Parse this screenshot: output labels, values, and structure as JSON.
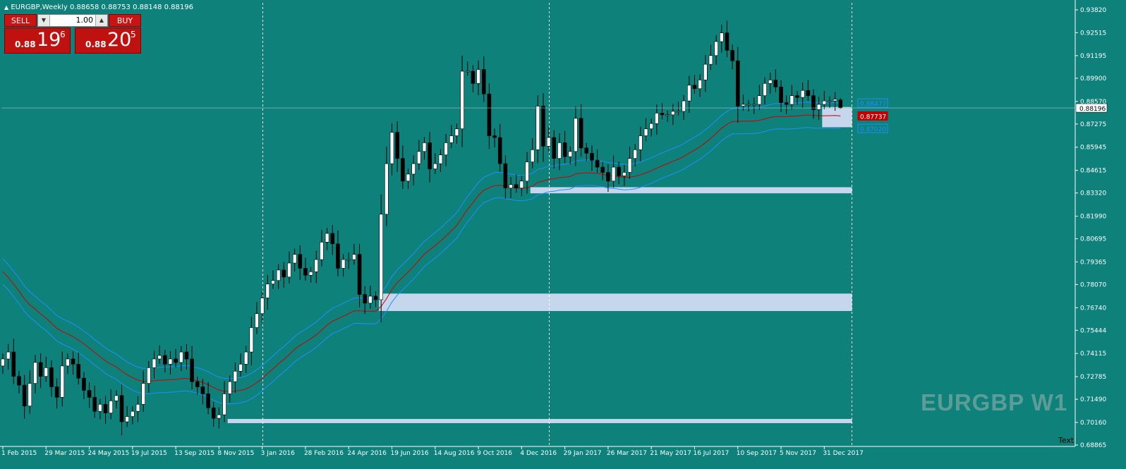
{
  "header": {
    "title": "EURGBP,Weekly  0.88658 0.88753 0.88148 0.88196"
  },
  "trade_panel": {
    "sell_label": "SELL",
    "buy_label": "BUY",
    "lot_value": "1.00",
    "sell_price_prefix": "0.88",
    "sell_price_big": "19",
    "sell_price_sup": "6",
    "buy_price_prefix": "0.88",
    "buy_price_big": "20",
    "buy_price_sup": "5"
  },
  "watermark": "EURGBP W1",
  "text_label": "Text",
  "price_axis": [
    "0.93820",
    "0.92515",
    "0.91195",
    "0.89900",
    "0.88570",
    "0.87275",
    "0.85945",
    "0.84615",
    "0.83320",
    "0.81990",
    "0.80695",
    "0.79365",
    "0.78070",
    "0.76740",
    "0.75444",
    "0.74115",
    "0.72785",
    "0.71490",
    "0.70160",
    "0.68865"
  ],
  "time_axis": [
    "1 Feb 2015",
    "29 Mar 2015",
    "24 May 2015",
    "19 Jul 2015",
    "13 Sep 2015",
    "8 Nov 2015",
    "3 Jan 2016",
    "28 Feb 2016",
    "24 Apr 2016",
    "19 Jun 2016",
    "14 Aug 2016",
    "9 Oct 2016",
    "4 Dec 2016",
    "29 Jan 2017",
    "26 Mar 2017",
    "21 May 2017",
    "16 Jul 2017",
    "10 Sep 2017",
    "5 Nov 2017",
    "31 Dec 2017"
  ],
  "price_tags": {
    "current": "0.88196",
    "upper_band": "0.88477",
    "middle_band": "0.87737",
    "lower_band": "0.87020"
  },
  "colors": {
    "background": "#0e817b",
    "bull": "#ffffff",
    "bear": "#000000",
    "band": "#1e90ff",
    "middle": "#cc0000",
    "zone": "#c6d6ec"
  },
  "chart_data": {
    "type": "candlestick",
    "symbol": "EURGBP",
    "timeframe": "Weekly",
    "current": {
      "open": 0.88658,
      "high": 0.88753,
      "low": 0.88148,
      "close": 0.88196
    },
    "ylim": [
      0.68865,
      0.9382
    ],
    "y_ticks": [
      0.9382,
      0.92515,
      0.91195,
      0.899,
      0.8857,
      0.87275,
      0.85945,
      0.84615,
      0.8332,
      0.8199,
      0.80695,
      0.79365,
      0.7807,
      0.7674,
      0.75444,
      0.74115,
      0.72785,
      0.7149,
      0.7016,
      0.68865
    ],
    "closes": [
      0.738,
      0.742,
      0.728,
      0.723,
      0.711,
      0.724,
      0.736,
      0.728,
      0.733,
      0.722,
      0.716,
      0.734,
      0.738,
      0.735,
      0.727,
      0.72,
      0.716,
      0.708,
      0.712,
      0.707,
      0.714,
      0.717,
      0.702,
      0.705,
      0.708,
      0.712,
      0.724,
      0.733,
      0.738,
      0.74,
      0.735,
      0.738,
      0.736,
      0.742,
      0.738,
      0.725,
      0.722,
      0.718,
      0.71,
      0.704,
      0.706,
      0.718,
      0.725,
      0.731,
      0.735,
      0.742,
      0.756,
      0.764,
      0.773,
      0.781,
      0.783,
      0.789,
      0.785,
      0.793,
      0.798,
      0.79,
      0.786,
      0.788,
      0.795,
      0.805,
      0.81,
      0.804,
      0.79,
      0.795,
      0.795,
      0.798,
      0.775,
      0.77,
      0.774,
      0.772,
      0.821,
      0.85,
      0.868,
      0.853,
      0.84,
      0.844,
      0.85,
      0.857,
      0.862,
      0.847,
      0.85,
      0.855,
      0.862,
      0.866,
      0.87,
      0.903,
      0.903,
      0.896,
      0.904,
      0.89,
      0.866,
      0.865,
      0.85,
      0.836,
      0.838,
      0.836,
      0.84,
      0.851,
      0.858,
      0.883,
      0.86,
      0.865,
      0.853,
      0.862,
      0.854,
      0.857,
      0.876,
      0.859,
      0.856,
      0.852,
      0.848,
      0.845,
      0.84,
      0.848,
      0.843,
      0.845,
      0.853,
      0.858,
      0.866,
      0.87,
      0.873,
      0.879,
      0.878,
      0.878,
      0.88,
      0.88,
      0.886,
      0.895,
      0.893,
      0.898,
      0.907,
      0.912,
      0.92,
      0.925,
      0.915,
      0.909,
      0.883,
      0.884,
      0.884,
      0.884,
      0.889,
      0.896,
      0.898,
      0.894,
      0.885,
      0.884,
      0.889,
      0.888,
      0.892,
      0.889,
      0.881,
      0.884,
      0.886,
      0.886,
      0.887,
      0.882
    ],
    "bands": {
      "upper_last": 0.88477,
      "middle_last": 0.87737,
      "lower_last": 0.8702
    },
    "zones": [
      {
        "top": 0.8365,
        "bottom": 0.833
      },
      {
        "top": 0.7755,
        "bottom": 0.7655
      },
      {
        "top": 0.7036,
        "bottom": 0.7012
      },
      {
        "top": 0.8825,
        "bottom": 0.8709
      }
    ],
    "x_labels": [
      "1 Feb 2015",
      "29 Mar 2015",
      "24 May 2015",
      "19 Jul 2015",
      "13 Sep 2015",
      "8 Nov 2015",
      "3 Jan 2016",
      "28 Feb 2016",
      "24 Apr 2016",
      "19 Jun 2016",
      "14 Aug 2016",
      "9 Oct 2016",
      "4 Dec 2016",
      "29 Jan 2017",
      "26 Mar 2017",
      "21 May 2017",
      "16 Jul 2017",
      "10 Sep 2017",
      "5 Nov 2017",
      "31 Dec 2017"
    ],
    "period_separators": [
      "3 Jan 2016",
      "1 Jan 2017",
      "31 Dec 2017"
    ]
  }
}
